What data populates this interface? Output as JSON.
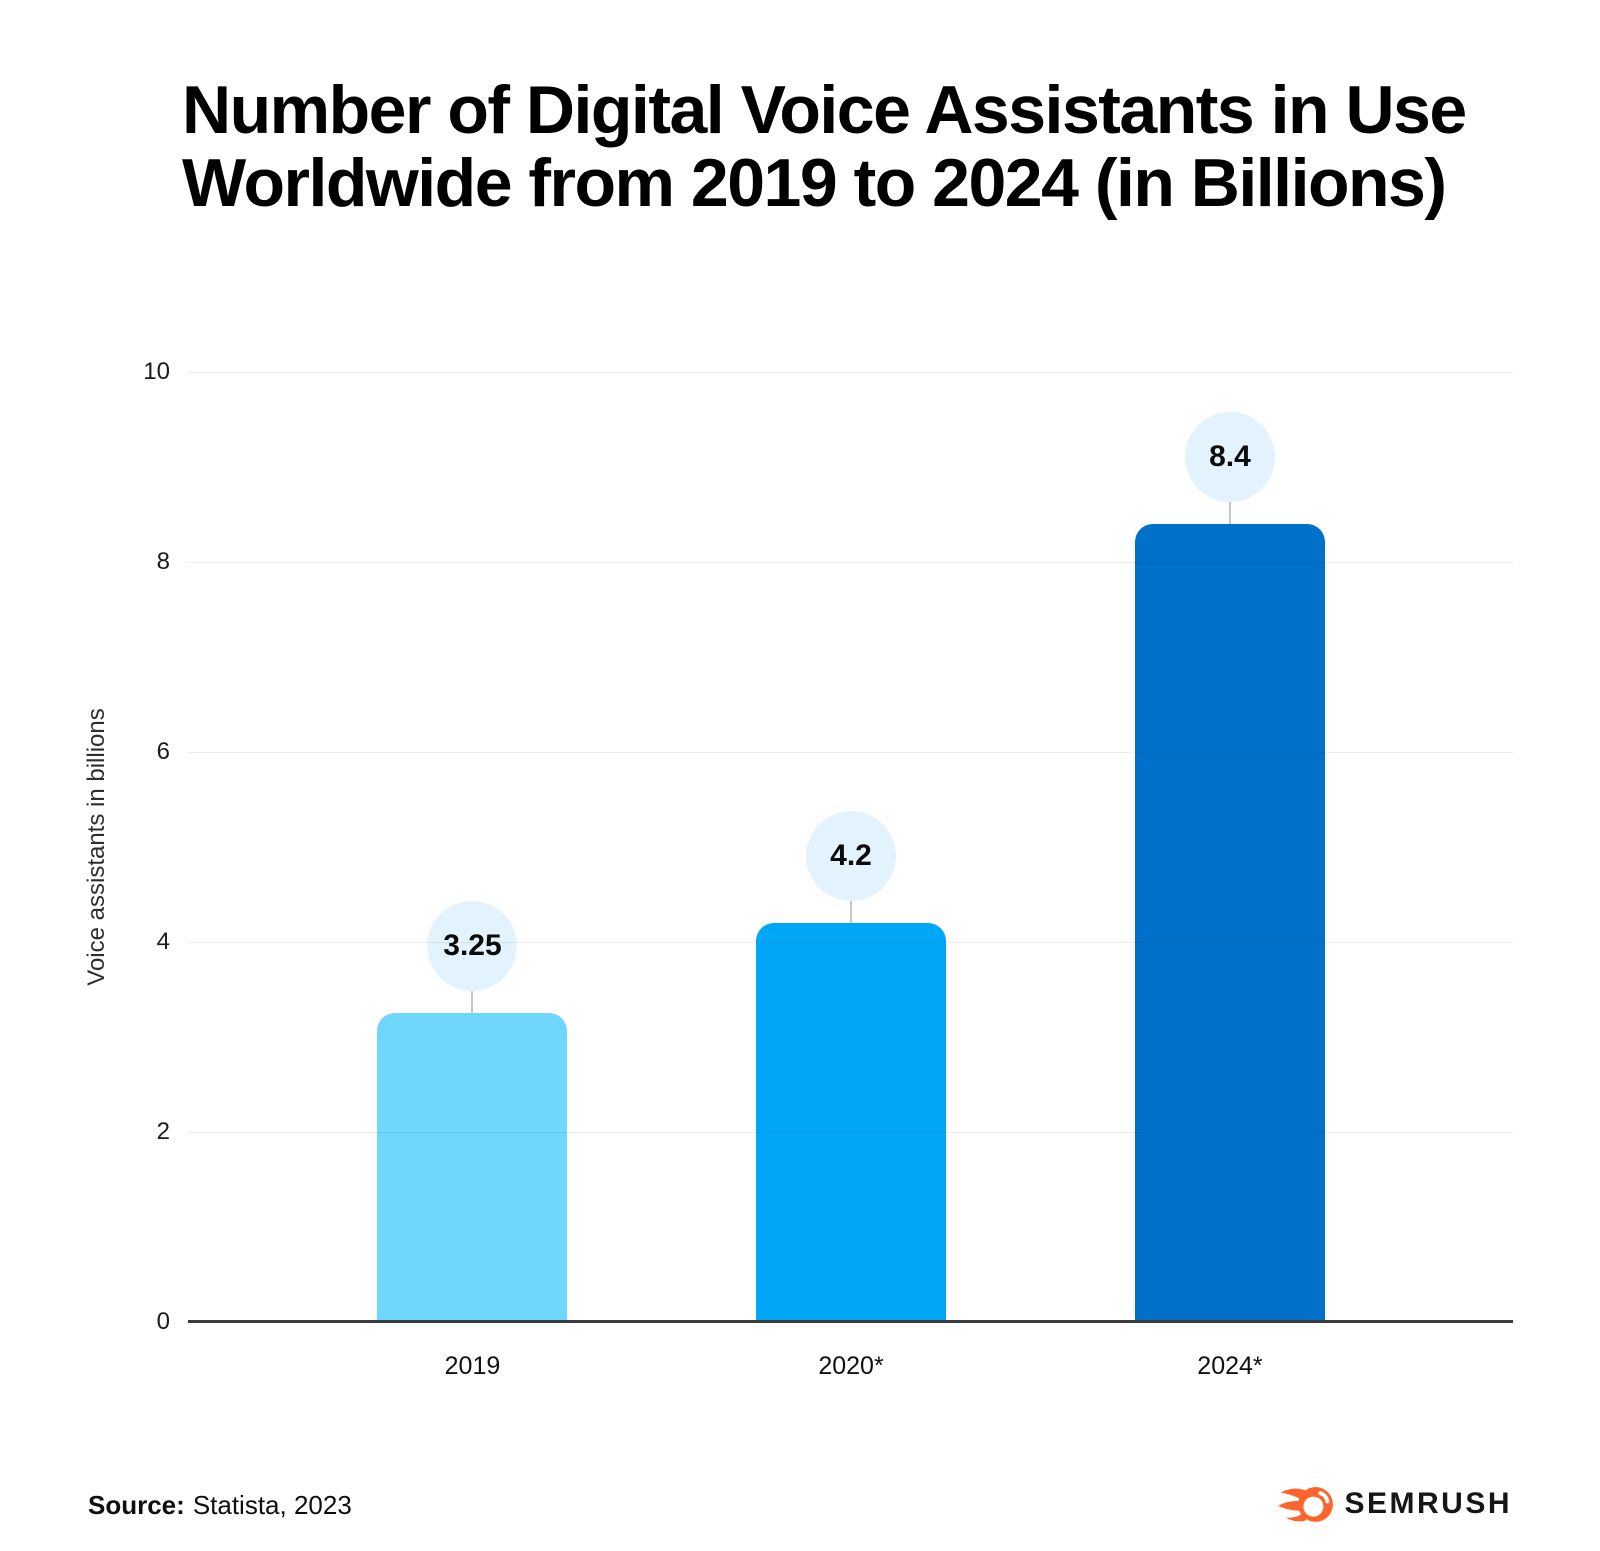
{
  "title": "Number of Digital Voice Assistants in Use Worldwide from 2019 to 2024 (in Billions)",
  "title_lines": [
    "Number of Digital Voice Assistants in Use",
    "Worldwide from 2019 to 2024 (in Billions)"
  ],
  "chart_data": {
    "type": "bar",
    "categories": [
      "2019",
      "2020*",
      "2024*"
    ],
    "values": [
      3.25,
      4.2,
      8.4
    ],
    "value_labels": [
      "3.25",
      "4.2",
      "8.4"
    ],
    "xlabel": "",
    "ylabel": "Voice assistants in billions",
    "ylim": [
      0,
      10
    ],
    "yticks": [
      0,
      2,
      4,
      6,
      8,
      10
    ],
    "grid": true,
    "legend": "none",
    "bar_colors": [
      "#6FD7FB",
      "#00A7F7",
      "#0070C9"
    ],
    "bubble_color": "#E3F3FD"
  },
  "footer": {
    "source_label": "Source:",
    "source_text": "Statista, 2023",
    "brand": "SEMRUSH",
    "brand_color": "#FF642D"
  }
}
